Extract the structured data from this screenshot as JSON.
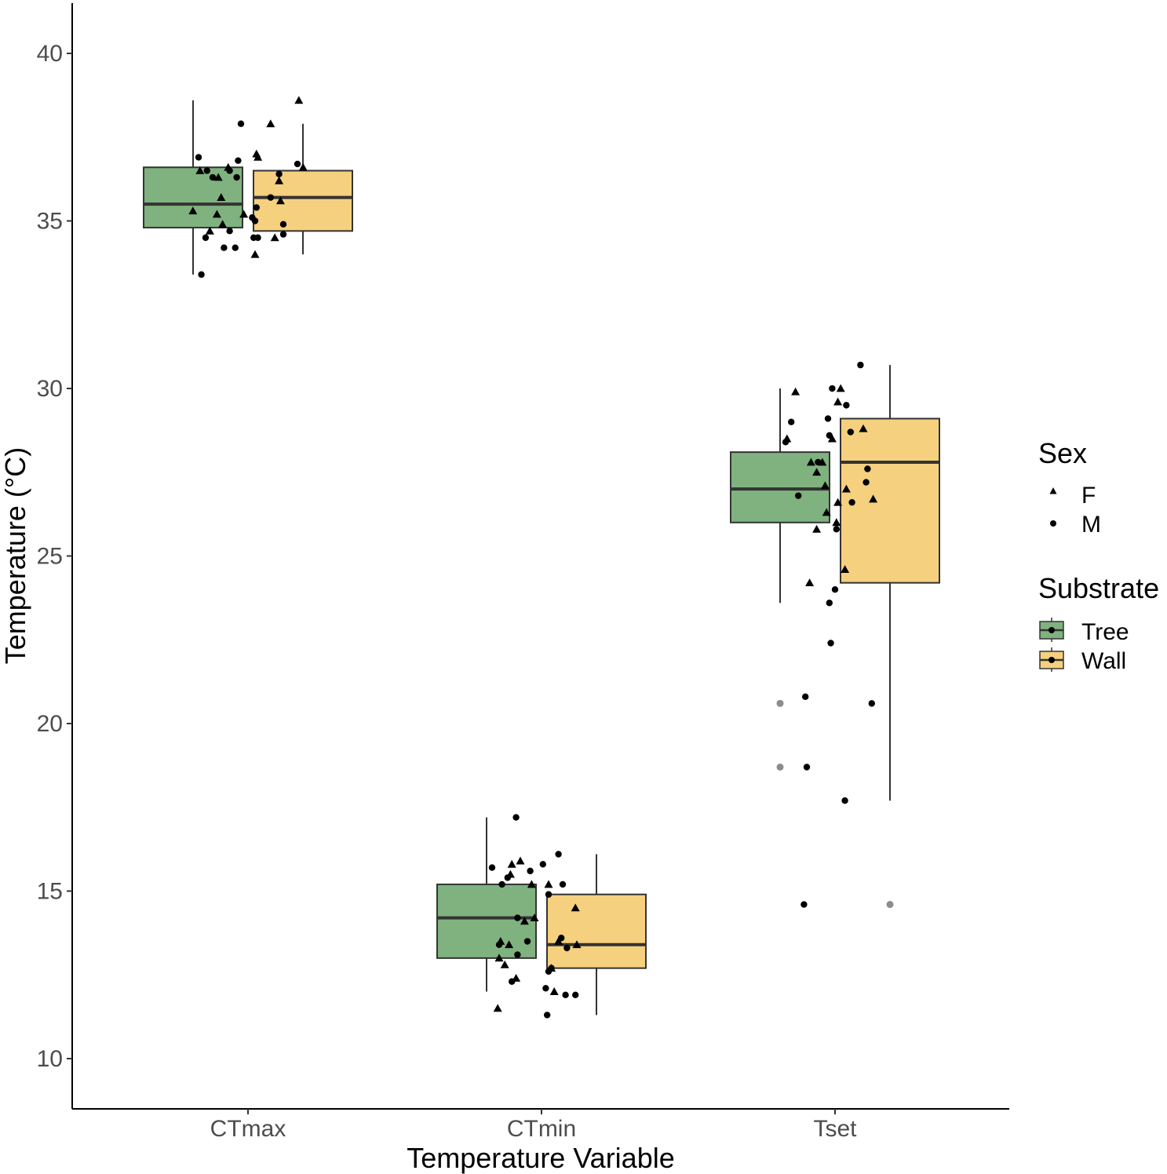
{
  "chart_data": {
    "type": "boxplot",
    "title": "",
    "xlabel": "Temperature Variable",
    "ylabel": "Temperature (°C)",
    "ylim": [
      8.5,
      41.5
    ],
    "yticks": [
      10,
      15,
      20,
      25,
      30,
      35,
      40
    ],
    "ytick_labels": [
      "10",
      "15",
      "20",
      "25",
      "30",
      "35",
      "40"
    ],
    "categories": [
      "CTmax",
      "CTmin",
      "Tset"
    ],
    "grid": false,
    "colors": {
      "Tree": "#7fb27f",
      "Wall": "#f5d07e",
      "outline": "#333333",
      "points": "#000000",
      "outlier": "#8c8c8c"
    },
    "legend": {
      "position": "right",
      "sex": {
        "title": "Sex",
        "entries": [
          {
            "label": "F",
            "shape": "triangle"
          },
          {
            "label": "M",
            "shape": "circle"
          }
        ]
      },
      "substrate": {
        "title": "Substrate",
        "entries": [
          {
            "label": "Tree",
            "color": "#7fb27f"
          },
          {
            "label": "Wall",
            "color": "#f5d07e"
          }
        ]
      }
    },
    "boxes": [
      {
        "category": "CTmax",
        "substrate": "Tree",
        "whisker_low": 33.4,
        "q1": 34.8,
        "median": 35.5,
        "q3": 36.6,
        "whisker_high": 38.6,
        "outliers": []
      },
      {
        "category": "CTmax",
        "substrate": "Wall",
        "whisker_low": 34.0,
        "q1": 34.7,
        "median": 35.7,
        "q3": 36.5,
        "whisker_high": 37.9,
        "outliers": []
      },
      {
        "category": "CTmin",
        "substrate": "Tree",
        "whisker_low": 12.0,
        "q1": 13.0,
        "median": 14.2,
        "q3": 15.2,
        "whisker_high": 17.2,
        "outliers": []
      },
      {
        "category": "CTmin",
        "substrate": "Wall",
        "whisker_low": 11.3,
        "q1": 12.7,
        "median": 13.4,
        "q3": 14.9,
        "whisker_high": 16.1,
        "outliers": []
      },
      {
        "category": "Tset",
        "substrate": "Tree",
        "whisker_low": 23.6,
        "q1": 26.0,
        "median": 27.0,
        "q3": 28.1,
        "whisker_high": 30.0,
        "outliers": [
          20.6,
          18.7
        ]
      },
      {
        "category": "Tset",
        "substrate": "Wall",
        "whisker_low": 17.7,
        "q1": 24.2,
        "median": 27.8,
        "q3": 29.1,
        "whisker_high": 30.7,
        "outliers": [
          14.6
        ]
      }
    ],
    "points": [
      {
        "category": "CTmax",
        "substrate": "Tree",
        "sex": "M",
        "offset": -0.35,
        "y": 36.9
      },
      {
        "category": "CTmax",
        "substrate": "Tree",
        "sex": "F",
        "offset": -0.34,
        "y": 36.5
      },
      {
        "category": "CTmax",
        "substrate": "Tree",
        "sex": "F",
        "offset": -0.39,
        "y": 35.3
      },
      {
        "category": "CTmax",
        "substrate": "Tree",
        "sex": "M",
        "offset": -0.33,
        "y": 33.4
      },
      {
        "category": "CTmax",
        "substrate": "Tree",
        "sex": "M",
        "offset": -0.3,
        "y": 34.5
      },
      {
        "category": "CTmax",
        "substrate": "Tree",
        "sex": "F",
        "offset": -0.27,
        "y": 34.7
      },
      {
        "category": "CTmax",
        "substrate": "Tree",
        "sex": "M",
        "offset": -0.29,
        "y": 36.5
      },
      {
        "category": "CTmax",
        "substrate": "Tree",
        "sex": "M",
        "offset": -0.25,
        "y": 36.3
      },
      {
        "category": "CTmax",
        "substrate": "Tree",
        "sex": "F",
        "offset": -0.21,
        "y": 36.3
      },
      {
        "category": "CTmax",
        "substrate": "Tree",
        "sex": "F",
        "offset": -0.22,
        "y": 35.2
      },
      {
        "category": "CTmax",
        "substrate": "Tree",
        "sex": "F",
        "offset": -0.19,
        "y": 35.7
      },
      {
        "category": "CTmax",
        "substrate": "Tree",
        "sex": "M",
        "offset": -0.17,
        "y": 34.2
      },
      {
        "category": "CTmax",
        "substrate": "Tree",
        "sex": "F",
        "offset": -0.18,
        "y": 34.9
      },
      {
        "category": "CTmax",
        "substrate": "Tree",
        "sex": "F",
        "offset": -0.14,
        "y": 36.6
      },
      {
        "category": "CTmax",
        "substrate": "Tree",
        "sex": "M",
        "offset": -0.13,
        "y": 36.5
      },
      {
        "category": "CTmax",
        "substrate": "Tree",
        "sex": "M",
        "offset": -0.13,
        "y": 34.7
      },
      {
        "category": "CTmax",
        "substrate": "Tree",
        "sex": "M",
        "offset": -0.09,
        "y": 34.2
      },
      {
        "category": "CTmax",
        "substrate": "Tree",
        "sex": "M",
        "offset": -0.08,
        "y": 36.3
      },
      {
        "category": "CTmax",
        "substrate": "Tree",
        "sex": "M",
        "offset": -0.07,
        "y": 36.8
      },
      {
        "category": "CTmax",
        "substrate": "Tree",
        "sex": "M",
        "offset": -0.05,
        "y": 37.9
      },
      {
        "category": "CTmax",
        "substrate": "Tree",
        "sex": "F",
        "offset": -0.03,
        "y": 35.2
      },
      {
        "category": "CTmax",
        "substrate": "Wall",
        "sex": "M",
        "offset": 0.03,
        "y": 35.1
      },
      {
        "category": "CTmax",
        "substrate": "Wall",
        "sex": "M",
        "offset": 0.04,
        "y": 34.5
      },
      {
        "category": "CTmax",
        "substrate": "Wall",
        "sex": "F",
        "offset": 0.05,
        "y": 34.0
      },
      {
        "category": "CTmax",
        "substrate": "Wall",
        "sex": "M",
        "offset": 0.05,
        "y": 35.0
      },
      {
        "category": "CTmax",
        "substrate": "Wall",
        "sex": "M",
        "offset": 0.06,
        "y": 35.4
      },
      {
        "category": "CTmax",
        "substrate": "Wall",
        "sex": "F",
        "offset": 0.06,
        "y": 37.0
      },
      {
        "category": "CTmax",
        "substrate": "Wall",
        "sex": "F",
        "offset": 0.07,
        "y": 36.9
      },
      {
        "category": "CTmax",
        "substrate": "Wall",
        "sex": "M",
        "offset": 0.07,
        "y": 34.5
      },
      {
        "category": "CTmax",
        "substrate": "Wall",
        "sex": "M",
        "offset": 0.16,
        "y": 35.7
      },
      {
        "category": "CTmax",
        "substrate": "Wall",
        "sex": "F",
        "offset": 0.16,
        "y": 37.9
      },
      {
        "category": "CTmax",
        "substrate": "Wall",
        "sex": "F",
        "offset": 0.19,
        "y": 34.5
      },
      {
        "category": "CTmax",
        "substrate": "Wall",
        "sex": "M",
        "offset": 0.22,
        "y": 36.4
      },
      {
        "category": "CTmax",
        "substrate": "Wall",
        "sex": "F",
        "offset": 0.22,
        "y": 36.2
      },
      {
        "category": "CTmax",
        "substrate": "Wall",
        "sex": "F",
        "offset": 0.23,
        "y": 35.6
      },
      {
        "category": "CTmax",
        "substrate": "Wall",
        "sex": "M",
        "offset": 0.25,
        "y": 34.9
      },
      {
        "category": "CTmax",
        "substrate": "Wall",
        "sex": "M",
        "offset": 0.25,
        "y": 34.6
      },
      {
        "category": "CTmax",
        "substrate": "Wall",
        "sex": "M",
        "offset": 0.35,
        "y": 36.7
      },
      {
        "category": "CTmax",
        "substrate": "Wall",
        "sex": "F",
        "offset": 0.36,
        "y": 38.6
      },
      {
        "category": "CTmax",
        "substrate": "Wall",
        "sex": "F",
        "offset": 0.39,
        "y": 36.6
      },
      {
        "category": "CTmin",
        "substrate": "Tree",
        "sex": "M",
        "offset": -0.35,
        "y": 15.7
      },
      {
        "category": "CTmin",
        "substrate": "Tree",
        "sex": "F",
        "offset": -0.31,
        "y": 11.5
      },
      {
        "category": "CTmin",
        "substrate": "Tree",
        "sex": "F",
        "offset": -0.3,
        "y": 13.0
      },
      {
        "category": "CTmin",
        "substrate": "Tree",
        "sex": "M",
        "offset": -0.3,
        "y": 13.4
      },
      {
        "category": "CTmin",
        "substrate": "Tree",
        "sex": "F",
        "offset": -0.29,
        "y": 13.5
      },
      {
        "category": "CTmin",
        "substrate": "Tree",
        "sex": "M",
        "offset": -0.28,
        "y": 15.2
      },
      {
        "category": "CTmin",
        "substrate": "Tree",
        "sex": "F",
        "offset": -0.26,
        "y": 12.8
      },
      {
        "category": "CTmin",
        "substrate": "Tree",
        "sex": "M",
        "offset": -0.24,
        "y": 15.4
      },
      {
        "category": "CTmin",
        "substrate": "Tree",
        "sex": "F",
        "offset": -0.23,
        "y": 13.4
      },
      {
        "category": "CTmin",
        "substrate": "Tree",
        "sex": "F",
        "offset": -0.22,
        "y": 15.5
      },
      {
        "category": "CTmin",
        "substrate": "Tree",
        "sex": "M",
        "offset": -0.21,
        "y": 12.3
      },
      {
        "category": "CTmin",
        "substrate": "Tree",
        "sex": "F",
        "offset": -0.21,
        "y": 15.8
      },
      {
        "category": "CTmin",
        "substrate": "Tree",
        "sex": "M",
        "offset": -0.18,
        "y": 17.2
      },
      {
        "category": "CTmin",
        "substrate": "Tree",
        "sex": "F",
        "offset": -0.18,
        "y": 12.4
      },
      {
        "category": "CTmin",
        "substrate": "Tree",
        "sex": "M",
        "offset": -0.17,
        "y": 14.2
      },
      {
        "category": "CTmin",
        "substrate": "Tree",
        "sex": "M",
        "offset": -0.17,
        "y": 13.1
      },
      {
        "category": "CTmin",
        "substrate": "Tree",
        "sex": "F",
        "offset": -0.15,
        "y": 15.9
      },
      {
        "category": "CTmin",
        "substrate": "Tree",
        "sex": "F",
        "offset": -0.12,
        "y": 14.1
      },
      {
        "category": "CTmin",
        "substrate": "Tree",
        "sex": "M",
        "offset": -0.1,
        "y": 13.5
      },
      {
        "category": "CTmin",
        "substrate": "Tree",
        "sex": "M",
        "offset": -0.08,
        "y": 15.6
      },
      {
        "category": "CTmin",
        "substrate": "Tree",
        "sex": "F",
        "offset": -0.07,
        "y": 15.2
      },
      {
        "category": "CTmin",
        "substrate": "Tree",
        "sex": "F",
        "offset": -0.05,
        "y": 14.2
      },
      {
        "category": "CTmin",
        "substrate": "Wall",
        "sex": "M",
        "offset": 0.01,
        "y": 15.8
      },
      {
        "category": "CTmin",
        "substrate": "Wall",
        "sex": "M",
        "offset": 0.03,
        "y": 12.1
      },
      {
        "category": "CTmin",
        "substrate": "Wall",
        "sex": "M",
        "offset": 0.04,
        "y": 11.3
      },
      {
        "category": "CTmin",
        "substrate": "Wall",
        "sex": "M",
        "offset": 0.05,
        "y": 12.6
      },
      {
        "category": "CTmin",
        "substrate": "Wall",
        "sex": "M",
        "offset": 0.05,
        "y": 14.9
      },
      {
        "category": "CTmin",
        "substrate": "Wall",
        "sex": "F",
        "offset": 0.05,
        "y": 15.2
      },
      {
        "category": "CTmin",
        "substrate": "Wall",
        "sex": "F",
        "offset": 0.07,
        "y": 12.7
      },
      {
        "category": "CTmin",
        "substrate": "Wall",
        "sex": "M",
        "offset": 0.07,
        "y": 12.7
      },
      {
        "category": "CTmin",
        "substrate": "Wall",
        "sex": "F",
        "offset": 0.09,
        "y": 12.0
      },
      {
        "category": "CTmin",
        "substrate": "Wall",
        "sex": "M",
        "offset": 0.12,
        "y": 16.1
      },
      {
        "category": "CTmin",
        "substrate": "Wall",
        "sex": "F",
        "offset": 0.12,
        "y": 13.5
      },
      {
        "category": "CTmin",
        "substrate": "Wall",
        "sex": "M",
        "offset": 0.14,
        "y": 13.6
      },
      {
        "category": "CTmin",
        "substrate": "Wall",
        "sex": "M",
        "offset": 0.15,
        "y": 15.2
      },
      {
        "category": "CTmin",
        "substrate": "Wall",
        "sex": "M",
        "offset": 0.17,
        "y": 11.9
      },
      {
        "category": "CTmin",
        "substrate": "Wall",
        "sex": "M",
        "offset": 0.18,
        "y": 13.3
      },
      {
        "category": "CTmin",
        "substrate": "Wall",
        "sex": "F",
        "offset": 0.24,
        "y": 14.5
      },
      {
        "category": "CTmin",
        "substrate": "Wall",
        "sex": "M",
        "offset": 0.24,
        "y": 11.9
      },
      {
        "category": "CTmin",
        "substrate": "Wall",
        "sex": "F",
        "offset": 0.25,
        "y": 13.4
      },
      {
        "category": "Tset",
        "substrate": "Tree",
        "sex": "M",
        "offset": -0.35,
        "y": 28.4
      },
      {
        "category": "Tset",
        "substrate": "Tree",
        "sex": "F",
        "offset": -0.34,
        "y": 28.5
      },
      {
        "category": "Tset",
        "substrate": "Tree",
        "sex": "M",
        "offset": -0.31,
        "y": 29.0
      },
      {
        "category": "Tset",
        "substrate": "Tree",
        "sex": "F",
        "offset": -0.28,
        "y": 29.9
      },
      {
        "category": "Tset",
        "substrate": "Tree",
        "sex": "M",
        "offset": -0.26,
        "y": 26.8
      },
      {
        "category": "Tset",
        "substrate": "Tree",
        "sex": "M",
        "offset": -0.22,
        "y": 14.6
      },
      {
        "category": "Tset",
        "substrate": "Tree",
        "sex": "M",
        "offset": -0.21,
        "y": 20.8
      },
      {
        "category": "Tset",
        "substrate": "Tree",
        "sex": "M",
        "offset": -0.2,
        "y": 18.7
      },
      {
        "category": "Tset",
        "substrate": "Tree",
        "sex": "F",
        "offset": -0.18,
        "y": 24.2
      },
      {
        "category": "Tset",
        "substrate": "Tree",
        "sex": "F",
        "offset": -0.17,
        "y": 27.8
      },
      {
        "category": "Tset",
        "substrate": "Tree",
        "sex": "F",
        "offset": -0.13,
        "y": 25.8
      },
      {
        "category": "Tset",
        "substrate": "Tree",
        "sex": "F",
        "offset": -0.13,
        "y": 27.5
      },
      {
        "category": "Tset",
        "substrate": "Tree",
        "sex": "M",
        "offset": -0.12,
        "y": 27.8
      },
      {
        "category": "Tset",
        "substrate": "Tree",
        "sex": "F",
        "offset": -0.09,
        "y": 27.8
      },
      {
        "category": "Tset",
        "substrate": "Tree",
        "sex": "F",
        "offset": -0.07,
        "y": 27.1
      },
      {
        "category": "Tset",
        "substrate": "Tree",
        "sex": "F",
        "offset": -0.06,
        "y": 26.3
      },
      {
        "category": "Tset",
        "substrate": "Tree",
        "sex": "M",
        "offset": -0.05,
        "y": 29.1
      },
      {
        "category": "Tset",
        "substrate": "Tree",
        "sex": "M",
        "offset": -0.04,
        "y": 28.6
      },
      {
        "category": "Tset",
        "substrate": "Tree",
        "sex": "F",
        "offset": -0.02,
        "y": 28.5
      },
      {
        "category": "Tset",
        "substrate": "Tree",
        "sex": "M",
        "offset": -0.04,
        "y": 23.6
      },
      {
        "category": "Tset",
        "substrate": "Tree",
        "sex": "M",
        "offset": -0.03,
        "y": 22.4
      },
      {
        "category": "Tset",
        "substrate": "Wall",
        "sex": "M",
        "offset": -0.02,
        "y": 30.0
      },
      {
        "category": "Tset",
        "substrate": "Wall",
        "sex": "M",
        "offset": 0.0,
        "y": 24.0
      },
      {
        "category": "Tset",
        "substrate": "Wall",
        "sex": "M",
        "offset": 0.01,
        "y": 25.8
      },
      {
        "category": "Tset",
        "substrate": "Wall",
        "sex": "F",
        "offset": 0.01,
        "y": 26.0
      },
      {
        "category": "Tset",
        "substrate": "Wall",
        "sex": "F",
        "offset": 0.02,
        "y": 26.6
      },
      {
        "category": "Tset",
        "substrate": "Wall",
        "sex": "F",
        "offset": 0.02,
        "y": 29.6
      },
      {
        "category": "Tset",
        "substrate": "Wall",
        "sex": "F",
        "offset": 0.04,
        "y": 30.0
      },
      {
        "category": "Tset",
        "substrate": "Wall",
        "sex": "F",
        "offset": 0.07,
        "y": 24.6
      },
      {
        "category": "Tset",
        "substrate": "Wall",
        "sex": "M",
        "offset": 0.07,
        "y": 17.7
      },
      {
        "category": "Tset",
        "substrate": "Wall",
        "sex": "F",
        "offset": 0.08,
        "y": 27.0
      },
      {
        "category": "Tset",
        "substrate": "Wall",
        "sex": "M",
        "offset": 0.08,
        "y": 29.5
      },
      {
        "category": "Tset",
        "substrate": "Wall",
        "sex": "M",
        "offset": 0.11,
        "y": 28.7
      },
      {
        "category": "Tset",
        "substrate": "Wall",
        "sex": "M",
        "offset": 0.12,
        "y": 26.6
      },
      {
        "category": "Tset",
        "substrate": "Wall",
        "sex": "M",
        "offset": 0.18,
        "y": 30.7
      },
      {
        "category": "Tset",
        "substrate": "Wall",
        "sex": "F",
        "offset": 0.2,
        "y": 28.8
      },
      {
        "category": "Tset",
        "substrate": "Wall",
        "sex": "M",
        "offset": 0.22,
        "y": 27.2
      },
      {
        "category": "Tset",
        "substrate": "Wall",
        "sex": "M",
        "offset": 0.23,
        "y": 27.6
      },
      {
        "category": "Tset",
        "substrate": "Wall",
        "sex": "M",
        "offset": 0.26,
        "y": 20.6
      },
      {
        "category": "Tset",
        "substrate": "Wall",
        "sex": "F",
        "offset": 0.27,
        "y": 26.7
      }
    ]
  }
}
